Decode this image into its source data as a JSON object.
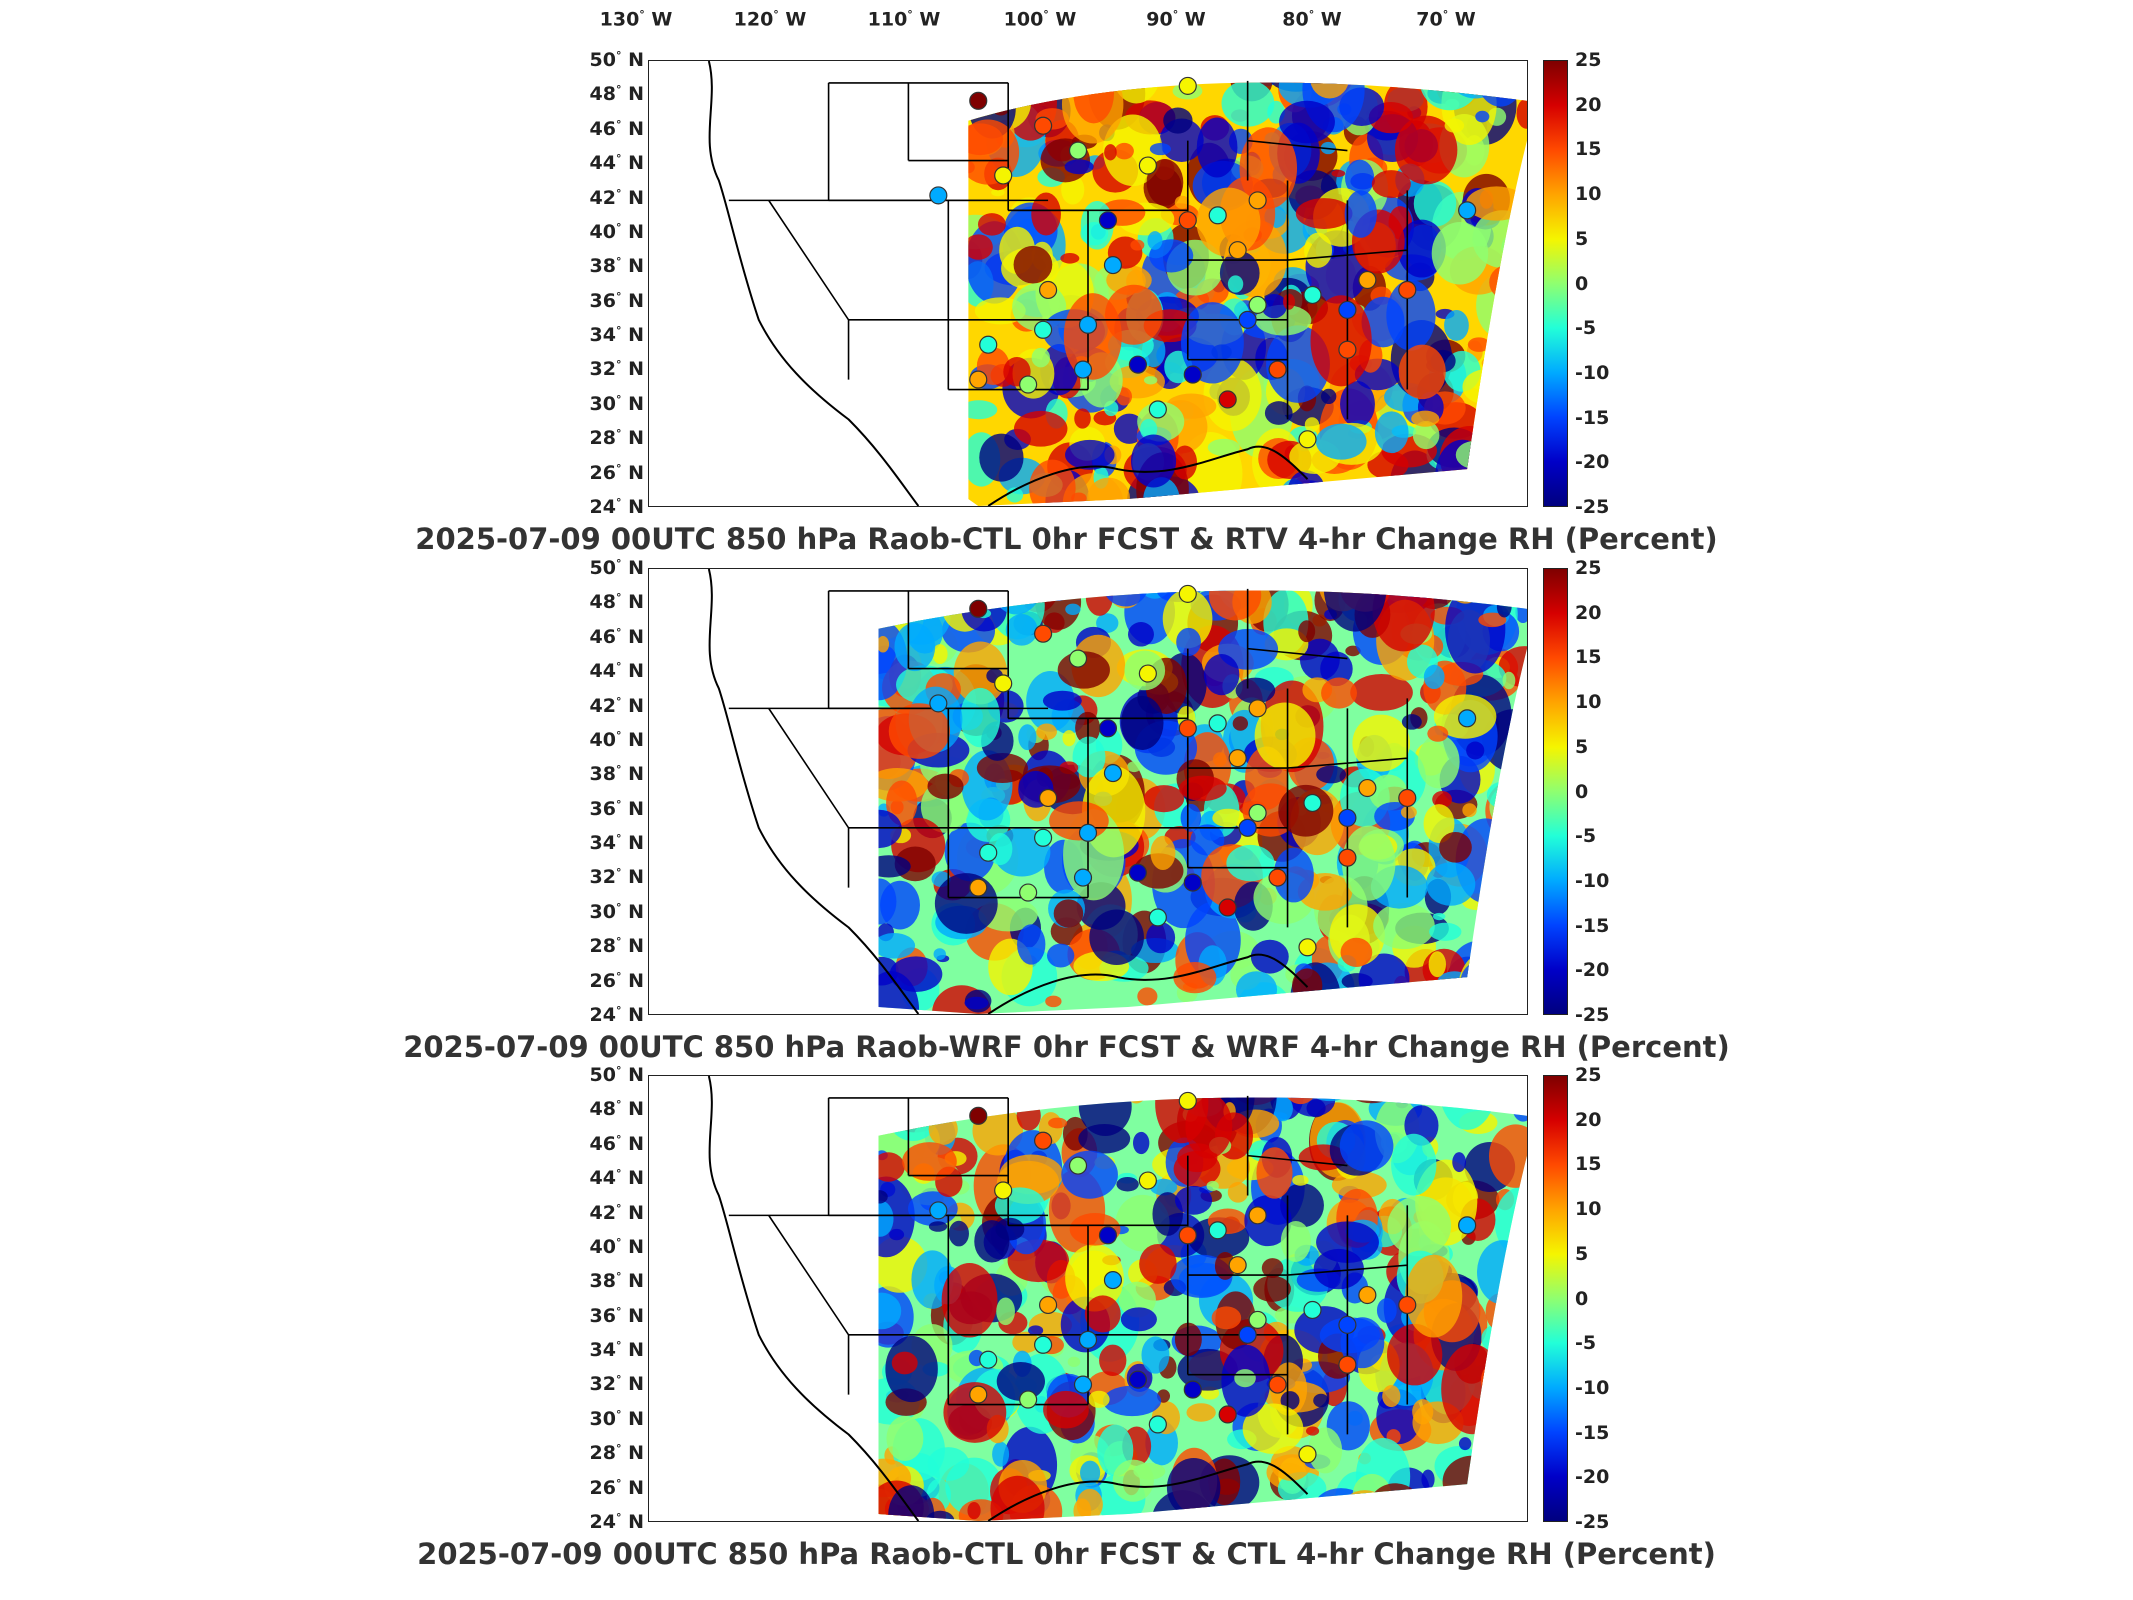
{
  "lon_labels": [
    {
      "deg": "130",
      "hemi": "W"
    },
    {
      "deg": "120",
      "hemi": "W"
    },
    {
      "deg": "110",
      "hemi": "W"
    },
    {
      "deg": "100",
      "hemi": "W"
    },
    {
      "deg": "90",
      "hemi": "W"
    },
    {
      "deg": "80",
      "hemi": "W"
    },
    {
      "deg": "70",
      "hemi": "W"
    }
  ],
  "lat_labels": [
    {
      "deg": "50",
      "hemi": "N"
    },
    {
      "deg": "48",
      "hemi": "N"
    },
    {
      "deg": "46",
      "hemi": "N"
    },
    {
      "deg": "44",
      "hemi": "N"
    },
    {
      "deg": "42",
      "hemi": "N"
    },
    {
      "deg": "40",
      "hemi": "N"
    },
    {
      "deg": "38",
      "hemi": "N"
    },
    {
      "deg": "36",
      "hemi": "N"
    },
    {
      "deg": "34",
      "hemi": "N"
    },
    {
      "deg": "32",
      "hemi": "N"
    },
    {
      "deg": "30",
      "hemi": "N"
    },
    {
      "deg": "28",
      "hemi": "N"
    },
    {
      "deg": "26",
      "hemi": "N"
    },
    {
      "deg": "24",
      "hemi": "N"
    }
  ],
  "colorbar_ticks": [
    "25",
    "20",
    "15",
    "10",
    "5",
    "0",
    "-5",
    "-10",
    "-15",
    "-20",
    "-25"
  ],
  "colorscale": [
    "#7f0000",
    "#d60000",
    "#ff4a00",
    "#ffa400",
    "#f5f500",
    "#8fff70",
    "#22ffd8",
    "#00aaff",
    "#0044ff",
    "#0000c8",
    "#00007f"
  ],
  "panels": [
    {
      "title": "2025-07-09 00UTC 850 hPa Raob-CTL 0hr FCST & RTV 4-hr Change RH (Percent)"
    },
    {
      "title": "2025-07-09 00UTC 850 hPa Raob-WRF 0hr FCST & WRF 4-hr Change RH (Percent)"
    },
    {
      "title": "2025-07-09 00UTC 850 hPa Raob-CTL 0hr FCST & CTL 4-hr Change RH (Percent)"
    }
  ]
}
